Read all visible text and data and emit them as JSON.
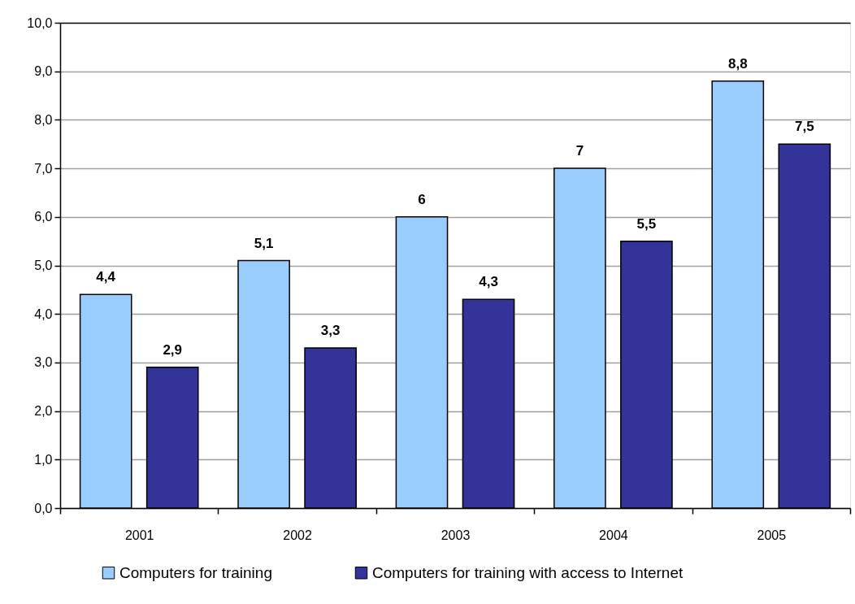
{
  "chart_data": {
    "type": "bar",
    "categories": [
      "2001",
      "2002",
      "2003",
      "2004",
      "2005"
    ],
    "series": [
      {
        "name": "Computers for training",
        "color": "#99ccff",
        "values": [
          4.4,
          5.1,
          6,
          7,
          8.8
        ],
        "value_labels": [
          "4,4",
          "5,1",
          "6",
          "7",
          "8,8"
        ]
      },
      {
        "name": "Computers for training with access to Internet",
        "color": "#333399",
        "values": [
          2.9,
          3.3,
          4.3,
          5.5,
          7.5
        ],
        "value_labels": [
          "2,9",
          "3,3",
          "4,3",
          "5,5",
          "7,5"
        ]
      }
    ],
    "ylim": [
      0,
      10
    ],
    "yticks": [
      {
        "value": 0,
        "label": "0,0"
      },
      {
        "value": 1,
        "label": "1,0"
      },
      {
        "value": 2,
        "label": "2,0"
      },
      {
        "value": 3,
        "label": "3,0"
      },
      {
        "value": 4,
        "label": "4,0"
      },
      {
        "value": 5,
        "label": "5,0"
      },
      {
        "value": 6,
        "label": "6,0"
      },
      {
        "value": 7,
        "label": "7,0"
      },
      {
        "value": 8,
        "label": "8,0"
      },
      {
        "value": 9,
        "label": "9,0"
      },
      {
        "value": 10,
        "label": "10,0"
      }
    ],
    "grid": "y",
    "legend": "bottom"
  }
}
